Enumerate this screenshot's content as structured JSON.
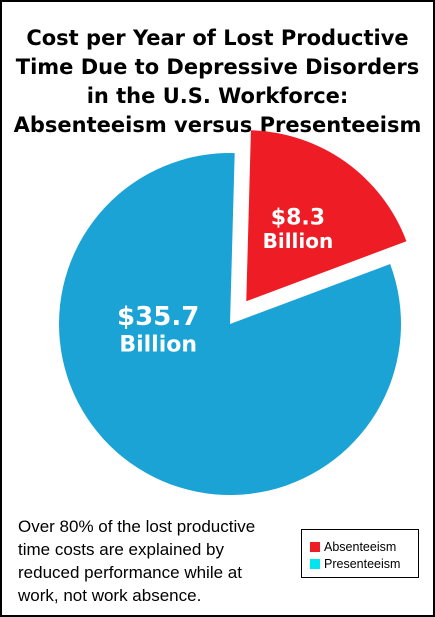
{
  "chart_data": {
    "type": "pie",
    "title": [
      "Cost per Year of Lost Productive",
      "Time Due to Depressive Disorders",
      "in the U.S. Workforce:",
      "Absenteeism versus Presenteeism"
    ],
    "categories": [
      "Absenteeism",
      "Presenteeism"
    ],
    "values": [
      8.3,
      35.7
    ],
    "data_labels": [
      [
        "$8.3",
        "Billion"
      ],
      [
        "$35.7",
        "Billion"
      ]
    ],
    "colors": [
      "#ee1c24",
      "#1ba3d6"
    ],
    "exploded": [
      "Absenteeism"
    ],
    "legend_position": "bottom-right"
  },
  "note": [
    "Over 80% of the lost productive",
    "time costs are explained by",
    "reduced performance while at",
    "work, not work absence."
  ],
  "legend": {
    "items": [
      {
        "label": "Absenteeism",
        "color": "#ee1c24"
      },
      {
        "label": "Presenteeism",
        "color": "#00e5f0"
      }
    ]
  }
}
